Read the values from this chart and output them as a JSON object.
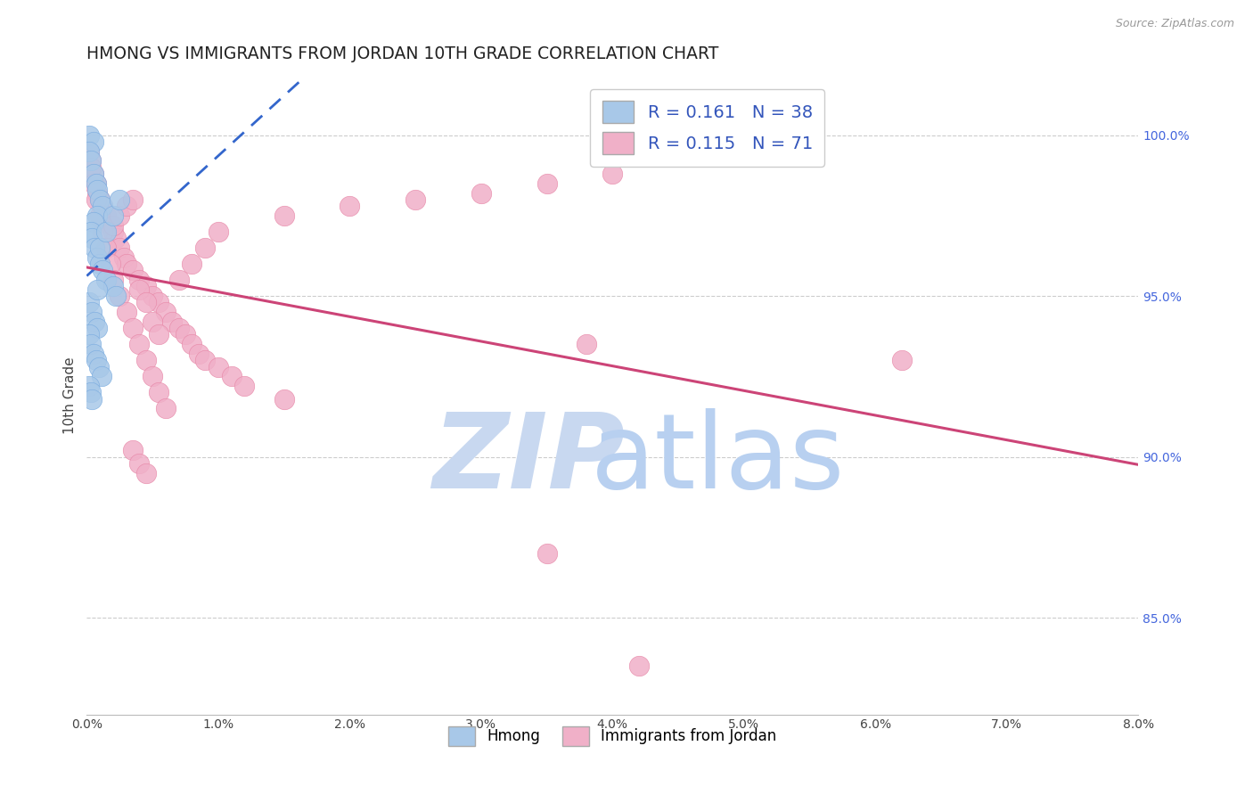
{
  "title": "HMONG VS IMMIGRANTS FROM JORDAN 10TH GRADE CORRELATION CHART",
  "source": "Source: ZipAtlas.com",
  "ylabel": "10th Grade",
  "ylabel_right_vals": [
    85.0,
    90.0,
    95.0,
    100.0
  ],
  "xmin": 0.0,
  "xmax": 8.0,
  "ymin": 82.0,
  "ymax": 101.8,
  "legend_hmong_R": "0.161",
  "legend_hmong_N": "38",
  "legend_jordan_R": "0.115",
  "legend_jordan_N": "71",
  "hmong_color": "#a8c8e8",
  "hmong_edge_color": "#7aace0",
  "jordan_color": "#f0b0c8",
  "jordan_edge_color": "#e888a8",
  "hmong_line_color": "#3366cc",
  "jordan_line_color": "#cc4477",
  "grid_color": "#cccccc",
  "watermark_zip_color": "#c8d8f0",
  "watermark_atlas_color": "#b8d0f0",
  "legend_text_color": "#3355bb",
  "hmong_x": [
    0.02,
    0.05,
    0.02,
    0.03,
    0.05,
    0.07,
    0.08,
    0.1,
    0.12,
    0.08,
    0.05,
    0.03,
    0.04,
    0.06,
    0.08,
    0.1,
    0.12,
    0.15,
    0.2,
    0.22,
    0.02,
    0.04,
    0.06,
    0.08,
    0.02,
    0.03,
    0.05,
    0.07,
    0.09,
    0.11,
    0.02,
    0.03,
    0.04,
    0.08,
    0.1,
    0.15,
    0.2,
    0.25
  ],
  "hmong_y": [
    100.0,
    99.8,
    99.5,
    99.2,
    98.8,
    98.5,
    98.3,
    98.0,
    97.8,
    97.5,
    97.3,
    97.0,
    96.8,
    96.5,
    96.2,
    96.0,
    95.8,
    95.5,
    95.3,
    95.0,
    94.8,
    94.5,
    94.2,
    94.0,
    93.8,
    93.5,
    93.2,
    93.0,
    92.8,
    92.5,
    92.2,
    92.0,
    91.8,
    95.2,
    96.5,
    97.0,
    97.5,
    98.0
  ],
  "jordan_x": [
    0.02,
    0.03,
    0.05,
    0.07,
    0.08,
    0.1,
    0.12,
    0.15,
    0.18,
    0.2,
    0.22,
    0.25,
    0.28,
    0.3,
    0.35,
    0.4,
    0.45,
    0.5,
    0.55,
    0.6,
    0.65,
    0.7,
    0.75,
    0.8,
    0.85,
    0.9,
    1.0,
    1.1,
    1.2,
    1.5,
    0.03,
    0.05,
    0.07,
    0.1,
    0.12,
    0.15,
    0.18,
    0.2,
    0.25,
    0.3,
    0.35,
    0.4,
    0.45,
    0.5,
    0.55,
    0.6,
    0.7,
    0.8,
    0.9,
    1.0,
    1.5,
    2.0,
    2.5,
    3.0,
    3.5,
    4.0,
    0.2,
    0.25,
    0.3,
    0.35,
    0.4,
    0.45,
    0.5,
    0.55,
    3.8,
    6.2,
    0.35,
    0.4,
    0.45,
    4.2,
    3.5
  ],
  "jordan_y": [
    99.5,
    99.2,
    98.8,
    98.5,
    98.2,
    98.0,
    97.8,
    97.5,
    97.2,
    97.0,
    96.8,
    96.5,
    96.2,
    96.0,
    95.8,
    95.5,
    95.3,
    95.0,
    94.8,
    94.5,
    94.2,
    94.0,
    93.8,
    93.5,
    93.2,
    93.0,
    92.8,
    92.5,
    92.2,
    91.8,
    99.0,
    98.5,
    98.0,
    97.5,
    97.0,
    96.5,
    96.0,
    95.5,
    95.0,
    94.5,
    94.0,
    93.5,
    93.0,
    92.5,
    92.0,
    91.5,
    95.5,
    96.0,
    96.5,
    97.0,
    97.5,
    97.8,
    98.0,
    98.2,
    98.5,
    98.8,
    97.2,
    97.5,
    97.8,
    98.0,
    95.2,
    94.8,
    94.2,
    93.8,
    93.5,
    93.0,
    90.2,
    89.8,
    89.5,
    83.5,
    87.0
  ],
  "background_color": "#ffffff",
  "title_fontsize": 13.5,
  "axis_label_fontsize": 11,
  "tick_fontsize": 10,
  "legend_fontsize": 14
}
